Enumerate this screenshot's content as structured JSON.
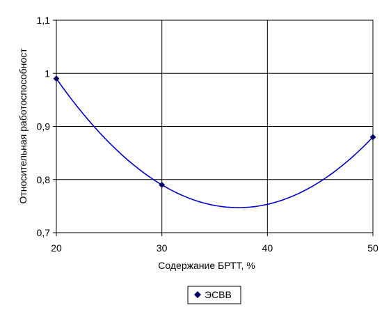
{
  "chart_data": {
    "type": "line",
    "xlabel": "Содержание БРТТ, %",
    "ylabel": "Относительная работоспособност",
    "xlim": [
      20,
      50
    ],
    "ylim": [
      0.7,
      1.1
    ],
    "x_ticks": [
      20,
      30,
      40,
      50
    ],
    "y_ticks": [
      0.7,
      0.8,
      0.9,
      1.0,
      1.1
    ],
    "x_tick_labels": [
      "20",
      "30",
      "40",
      "50"
    ],
    "y_tick_labels": [
      "0,7",
      "0,8",
      "0,9",
      "1",
      "1,1"
    ],
    "grid": true,
    "legend_position": "bottom",
    "series": [
      {
        "name": "ЭСВВ",
        "color": "#0000cc",
        "marker": "diamond",
        "smooth": true,
        "x": [
          20,
          30,
          50
        ],
        "y": [
          0.99,
          0.79,
          0.88
        ]
      }
    ]
  }
}
